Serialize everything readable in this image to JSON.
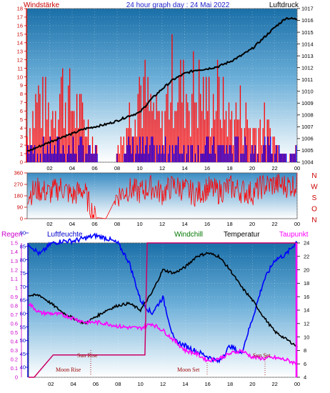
{
  "header": {
    "left_label": "Windstärke",
    "title": "24 hour graph day : 24 Mai 2022",
    "right_label": "Luftdruck"
  },
  "time_ticks": [
    "02",
    "04",
    "06",
    "08",
    "10",
    "12",
    "14",
    "16",
    "18",
    "20",
    "22",
    "00"
  ],
  "wind_panel": {
    "y_ticks": [
      "0",
      "1",
      "2",
      "3",
      "4",
      "5",
      "6",
      "7",
      "8",
      "9",
      "10",
      "11",
      "12",
      "13",
      "14",
      "15",
      "16",
      "17",
      "18"
    ],
    "pressure_ticks": [
      "1004",
      "1005",
      "1006",
      "1007",
      "1008",
      "1009",
      "1010",
      "1011",
      "1012",
      "1013",
      "1014",
      "1015",
      "1016",
      "1017"
    ]
  },
  "direction_panel": {
    "y_ticks": [
      "0",
      "90",
      "180",
      "270",
      "360"
    ],
    "compass": [
      "N",
      "W",
      "S",
      "O",
      "N"
    ]
  },
  "bottom_panel": {
    "labels": {
      "regen": "Regen",
      "luftfeuchte": "Luftfeuchte",
      "windchill": "Windchill",
      "temperatur": "Temperatur",
      "taupunkt": "Taupunkt"
    },
    "rain_ticks": [
      "0",
      "0.1",
      "0.2",
      "0.3",
      "0.4",
      "0.5",
      "0.6",
      "0.7",
      "0.8",
      "0.9",
      "1",
      "1.1",
      "1.2",
      "1.3",
      "1.4",
      "1.5"
    ],
    "humidity_ticks": [
      "40",
      "45",
      "50",
      "55",
      "60",
      "65",
      "70",
      "75",
      "80",
      "85",
      "90"
    ],
    "temp_ticks": [
      "4",
      "6",
      "8",
      "10",
      "12",
      "14",
      "16",
      "18",
      "20",
      "22",
      "24"
    ],
    "annotations": {
      "sun_rise": "Sun Rise",
      "sun_set": "Sun Set",
      "moon_rise": "Moon Rise",
      "moon_set": "Moon Set"
    }
  },
  "colors": {
    "wind_gust": "#ff0000",
    "wind_avg": "#0000ff",
    "pressure": "#000000",
    "direction": "#ff0000",
    "humidity": "#0000ff",
    "temperature": "#000000",
    "dewpoint": "#ff00ff",
    "rain": "#cc0066"
  },
  "chart_data": [
    {
      "type": "line",
      "x_unit": "hour",
      "series": [
        {
          "name": "Windstärke",
          "x": [
            0,
            1,
            2,
            3,
            4,
            5,
            6,
            7,
            8,
            9,
            10,
            11,
            12,
            13,
            14,
            15,
            16,
            17,
            18,
            19,
            20,
            21,
            22,
            23,
            24
          ],
          "values": [
            3,
            9,
            6,
            10,
            8,
            6,
            2,
            0,
            1,
            6,
            11,
            7,
            5,
            12,
            9,
            10,
            8,
            9,
            6,
            7,
            4,
            5,
            3,
            1,
            2
          ]
        },
        {
          "name": "Luftdruck",
          "x": [
            0,
            1,
            2,
            3,
            4,
            5,
            6,
            7,
            8,
            9,
            10,
            11,
            12,
            13,
            14,
            15,
            16,
            17,
            18,
            19,
            20,
            21,
            22,
            23,
            24
          ],
          "values": [
            1004.9,
            1005.3,
            1005.7,
            1006.1,
            1006.4,
            1006.8,
            1007.0,
            1007.2,
            1007.5,
            1007.9,
            1008.2,
            1009.3,
            1010.2,
            1011.0,
            1011.5,
            1011.8,
            1011.9,
            1012.1,
            1012.5,
            1013.0,
            1013.6,
            1014.5,
            1015.4,
            1016.2,
            1016.1
          ]
        }
      ],
      "ylim": [
        0,
        18
      ],
      "y2lim": [
        1004,
        1017
      ]
    },
    {
      "type": "line",
      "x_unit": "hour",
      "series": [
        {
          "name": "Wind direction",
          "x": [
            0,
            1,
            2,
            3,
            4,
            5,
            6,
            7,
            8,
            9,
            10,
            11,
            12,
            13,
            14,
            15,
            16,
            17,
            18,
            19,
            20,
            21,
            22,
            23,
            24
          ],
          "values": [
            190,
            230,
            200,
            250,
            180,
            230,
            10,
            0,
            180,
            230,
            210,
            250,
            200,
            260,
            230,
            190,
            240,
            210,
            250,
            220,
            200,
            260,
            270,
            260,
            270
          ]
        }
      ],
      "ylim": [
        0,
        360
      ]
    },
    {
      "type": "line",
      "x_unit": "hour",
      "series": [
        {
          "name": "Luftfeuchte",
          "x": [
            0,
            1,
            2,
            3,
            4,
            5,
            6,
            7,
            8,
            9,
            10,
            11,
            12,
            13,
            14,
            15,
            16,
            17,
            18,
            19,
            20,
            21,
            22,
            23,
            24
          ],
          "values": [
            86,
            82,
            86,
            87,
            87,
            88,
            89,
            88,
            86,
            79,
            65,
            60,
            66,
            50,
            48,
            46,
            44,
            42,
            48,
            45,
            58,
            72,
            80,
            82,
            87
          ]
        },
        {
          "name": "Temperatur",
          "x": [
            0,
            1,
            2,
            3,
            4,
            5,
            6,
            7,
            8,
            9,
            10,
            11,
            12,
            13,
            14,
            15,
            16,
            17,
            18,
            19,
            20,
            21,
            22,
            23,
            24
          ],
          "values": [
            16.2,
            16.2,
            15.0,
            13.7,
            12.8,
            12.0,
            13.0,
            14.0,
            14.7,
            15.0,
            14.0,
            16.5,
            20.0,
            19.5,
            20.4,
            22.0,
            22.5,
            22.0,
            20.0,
            17.5,
            15.5,
            13.0,
            10.8,
            9.7,
            8.6
          ]
        },
        {
          "name": "Taupunkt",
          "x": [
            0,
            1,
            2,
            3,
            4,
            5,
            6,
            7,
            8,
            9,
            10,
            11,
            12,
            13,
            14,
            15,
            16,
            17,
            18,
            19,
            20,
            21,
            22,
            23,
            24
          ],
          "values": [
            15.0,
            13.6,
            13.5,
            13.3,
            12.8,
            12.2,
            12.2,
            12.0,
            11.6,
            11.4,
            11.3,
            12.0,
            11.0,
            9.5,
            8.0,
            7.5,
            6.5,
            6.8,
            7.5,
            8.0,
            7.0,
            6.8,
            6.9,
            6.6,
            6.0
          ]
        },
        {
          "name": "Regen",
          "x": [
            0,
            0.5,
            2.2,
            4.4,
            6.6,
            8.8,
            10.4,
            10.6,
            12,
            14,
            16,
            18,
            20,
            22,
            24
          ],
          "values": [
            0,
            0,
            0.25,
            0.25,
            0.25,
            0.25,
            0.25,
            1.5,
            1.5,
            1.5,
            1.5,
            1.5,
            1.5,
            1.5,
            1.5
          ]
        }
      ],
      "rain_lim": [
        0,
        1.5
      ],
      "humidity_lim": [
        40,
        90
      ],
      "temp_lim": [
        4,
        24
      ]
    }
  ]
}
